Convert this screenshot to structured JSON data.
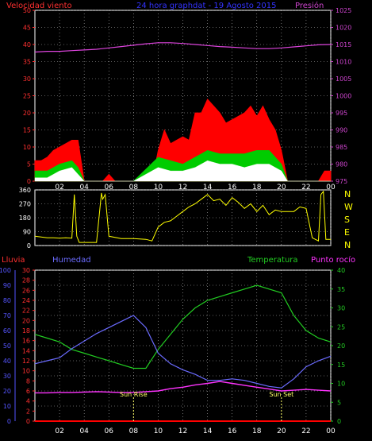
{
  "colors": {
    "wind": "#ff0000",
    "gust": "#ff0000",
    "wind_avg": "#00cc00",
    "wind_min": "#ffffff",
    "pressure": "#dd44dd",
    "direction": "#ffff00",
    "humidity": "#6b6bff",
    "temperature": "#22cc22",
    "dewpoint": "#ff33ff",
    "rain": "#ff0000",
    "sun": "#ffff66",
    "axis_left_top": "#ff3030",
    "axis_right_top": "#cc44cc",
    "axis_humidity": "#5555ff",
    "axis_rain": "#ff3030",
    "axis_temp": "#22cc22",
    "frame": "#ffffff",
    "grid": "#bbbbbb"
  },
  "header": {
    "left": "Velocidad viento",
    "center": "24 hora graphdat - 19 Agosto 2015",
    "right": "Presión"
  },
  "direction_labels": [
    "N",
    "W",
    "S",
    "E",
    "N"
  ],
  "bottom_header": {
    "left1": "Lluvia",
    "left2": "Humedad",
    "right1": "Temperatura",
    "right2": "Punto rocío"
  },
  "sun": {
    "rise_label": "Sun Rise",
    "set_label": "Sun Set",
    "rise_hour": 8.0,
    "set_hour": 20.0
  },
  "x_ticks": [
    "02",
    "04",
    "06",
    "08",
    "10",
    "12",
    "14",
    "16",
    "18",
    "20",
    "22",
    "00"
  ],
  "chart_data": [
    {
      "type": "area",
      "name": "wind",
      "x_unit": "hour",
      "x_range": [
        0,
        24
      ],
      "wind_ticks": [
        "0",
        "5",
        "10",
        "15",
        "20",
        "25",
        "30",
        "35",
        "40",
        "45",
        "50"
      ],
      "wind_range": [
        0,
        50
      ],
      "pressure_ticks": [
        "975",
        "980",
        "985",
        "990",
        "995",
        "1000",
        "1005",
        "1010",
        "1015",
        "1020",
        "1025"
      ],
      "pressure_range": [
        975,
        1025
      ],
      "pressure": {
        "x": [
          0,
          1,
          2,
          3,
          4,
          5,
          6,
          7,
          8,
          9,
          10,
          11,
          12,
          13,
          14,
          15,
          16,
          17,
          18,
          19,
          20,
          21,
          22,
          23,
          24
        ],
        "y": [
          1012.8,
          1013.0,
          1013.0,
          1013.2,
          1013.4,
          1013.6,
          1014.0,
          1014.4,
          1014.8,
          1015.2,
          1015.5,
          1015.5,
          1015.3,
          1015.0,
          1014.7,
          1014.4,
          1014.2,
          1014.0,
          1013.8,
          1013.8,
          1014.0,
          1014.3,
          1014.6,
          1014.9,
          1015.0
        ]
      },
      "gust": {
        "x": [
          0,
          0.5,
          1,
          1.5,
          2,
          2.5,
          3,
          3.5,
          4,
          4.5,
          5,
          5.5,
          6,
          6.5,
          7,
          7.5,
          8,
          8.5,
          9,
          9.5,
          10,
          10.5,
          11,
          11.5,
          12,
          12.5,
          13,
          13.5,
          14,
          14.5,
          15,
          15.5,
          16,
          16.5,
          17,
          17.5,
          18,
          18.5,
          19,
          19.5,
          20,
          20.5,
          21,
          21.5,
          22,
          22.5,
          23,
          23.5,
          24
        ],
        "y": [
          6,
          6,
          7,
          9,
          10,
          11,
          12,
          12,
          0,
          0,
          0,
          0,
          2,
          0,
          0,
          0,
          0,
          0,
          0,
          0,
          9,
          15,
          11,
          12,
          13,
          12,
          20,
          20,
          24,
          22,
          20,
          17,
          18,
          19,
          20,
          22,
          19,
          22,
          18,
          15,
          9,
          0,
          0,
          0,
          0,
          0,
          0,
          3,
          3
        ]
      },
      "wind_avg": {
        "x": [
          0,
          1,
          2,
          3,
          3.5,
          4,
          6,
          8,
          10,
          11,
          12,
          13,
          14,
          15,
          16,
          17,
          18,
          19,
          20,
          20.5,
          21,
          24
        ],
        "y": [
          3,
          3,
          5,
          6,
          4,
          0,
          0,
          0,
          7,
          6,
          5,
          7,
          9,
          8,
          8,
          8,
          9,
          9,
          5,
          0,
          0,
          0
        ]
      },
      "wind_min": {
        "x": [
          0,
          1,
          2,
          3,
          3.5,
          4,
          6,
          8,
          10,
          11,
          12,
          13,
          14,
          15,
          16,
          17,
          18,
          19,
          20,
          20.5,
          21,
          24
        ],
        "y": [
          1,
          1,
          3,
          4,
          2,
          0,
          0,
          0,
          4,
          3,
          3,
          4,
          6,
          5,
          5,
          4,
          5,
          5,
          3,
          0,
          0,
          0
        ]
      }
    },
    {
      "type": "line",
      "name": "wind_direction",
      "x_unit": "hour",
      "x_range": [
        0,
        24
      ],
      "dir_ticks": [
        "0",
        "90",
        "180",
        "270",
        "360"
      ],
      "dir_range": [
        0,
        360
      ],
      "x": [
        0,
        0.5,
        1,
        1.5,
        2,
        2.5,
        3,
        3.2,
        3.4,
        3.6,
        4,
        5,
        5.4,
        5.5,
        5.7,
        6,
        7,
        8,
        9,
        9.5,
        10,
        10.5,
        11,
        11.5,
        12,
        12.5,
        13,
        13.5,
        14,
        14.5,
        15,
        15.5,
        16,
        16.5,
        17,
        17.5,
        18,
        18.5,
        19,
        19.5,
        20,
        21,
        21.5,
        22,
        22.5,
        23,
        23.2,
        23.4,
        23.6,
        24
      ],
      "y": [
        60,
        55,
        50,
        50,
        48,
        50,
        48,
        330,
        60,
        20,
        20,
        20,
        340,
        300,
        330,
        60,
        45,
        45,
        40,
        30,
        120,
        150,
        160,
        190,
        220,
        250,
        270,
        300,
        330,
        290,
        300,
        260,
        310,
        280,
        240,
        270,
        220,
        260,
        200,
        230,
        220,
        220,
        250,
        240,
        50,
        30,
        330,
        350,
        40,
        40
      ]
    },
    {
      "type": "line",
      "name": "weather",
      "x_unit": "hour",
      "x_range": [
        0,
        24
      ],
      "humidity_ticks": [
        "0",
        "10",
        "20",
        "30",
        "40",
        "50",
        "60",
        "70",
        "80",
        "90",
        "100"
      ],
      "humidity_range": [
        0,
        100
      ],
      "rain_ticks": [
        "0",
        "2",
        "4",
        "6",
        "8",
        "10",
        "12",
        "14",
        "16",
        "18",
        "20",
        "22",
        "24",
        "26",
        "28",
        "30"
      ],
      "rain_range": [
        0,
        30
      ],
      "temp_ticks": [
        "0",
        "5",
        "10",
        "15",
        "20",
        "25",
        "30",
        "35",
        "40"
      ],
      "temp_range": [
        0,
        40
      ],
      "temperature": {
        "x": [
          0,
          1,
          2,
          3,
          4,
          5,
          6,
          7,
          8,
          9,
          10,
          11,
          12,
          13,
          14,
          15,
          16,
          17,
          18,
          19,
          20,
          21,
          22,
          23,
          24
        ],
        "y": [
          23,
          22,
          21,
          19,
          18,
          17,
          16,
          15,
          14,
          14,
          19,
          23,
          27,
          30,
          32,
          33,
          34,
          35,
          36,
          35,
          34,
          28,
          24,
          22,
          21
        ]
      },
      "humidity": {
        "x": [
          0,
          1,
          2,
          3,
          4,
          5,
          6,
          7,
          8,
          9,
          10,
          11,
          12,
          13,
          14,
          15,
          16,
          17,
          18,
          19,
          20,
          21,
          22,
          23,
          24
        ],
        "y": [
          38,
          40,
          42,
          48,
          53,
          58,
          62,
          66,
          70,
          62,
          45,
          38,
          34,
          31,
          27,
          27,
          28,
          27,
          25,
          23,
          22,
          28,
          36,
          40,
          43
        ]
      },
      "dewpoint": {
        "x": [
          0,
          1,
          2,
          3,
          4,
          5,
          6,
          7,
          8,
          9,
          10,
          11,
          12,
          13,
          14,
          15,
          16,
          17,
          18,
          19,
          20,
          21,
          22,
          23,
          24
        ],
        "y": [
          7.5,
          7.5,
          7.6,
          7.6,
          7.7,
          7.8,
          7.7,
          7.6,
          7.6,
          7.8,
          8.0,
          8.6,
          9.0,
          9.6,
          10.0,
          10.5,
          10.0,
          9.5,
          9.0,
          8.5,
          8.0,
          8.2,
          8.4,
          8.2,
          8.0
        ]
      },
      "rain": {
        "x": [
          0,
          24
        ],
        "y": [
          0,
          0
        ]
      }
    }
  ]
}
